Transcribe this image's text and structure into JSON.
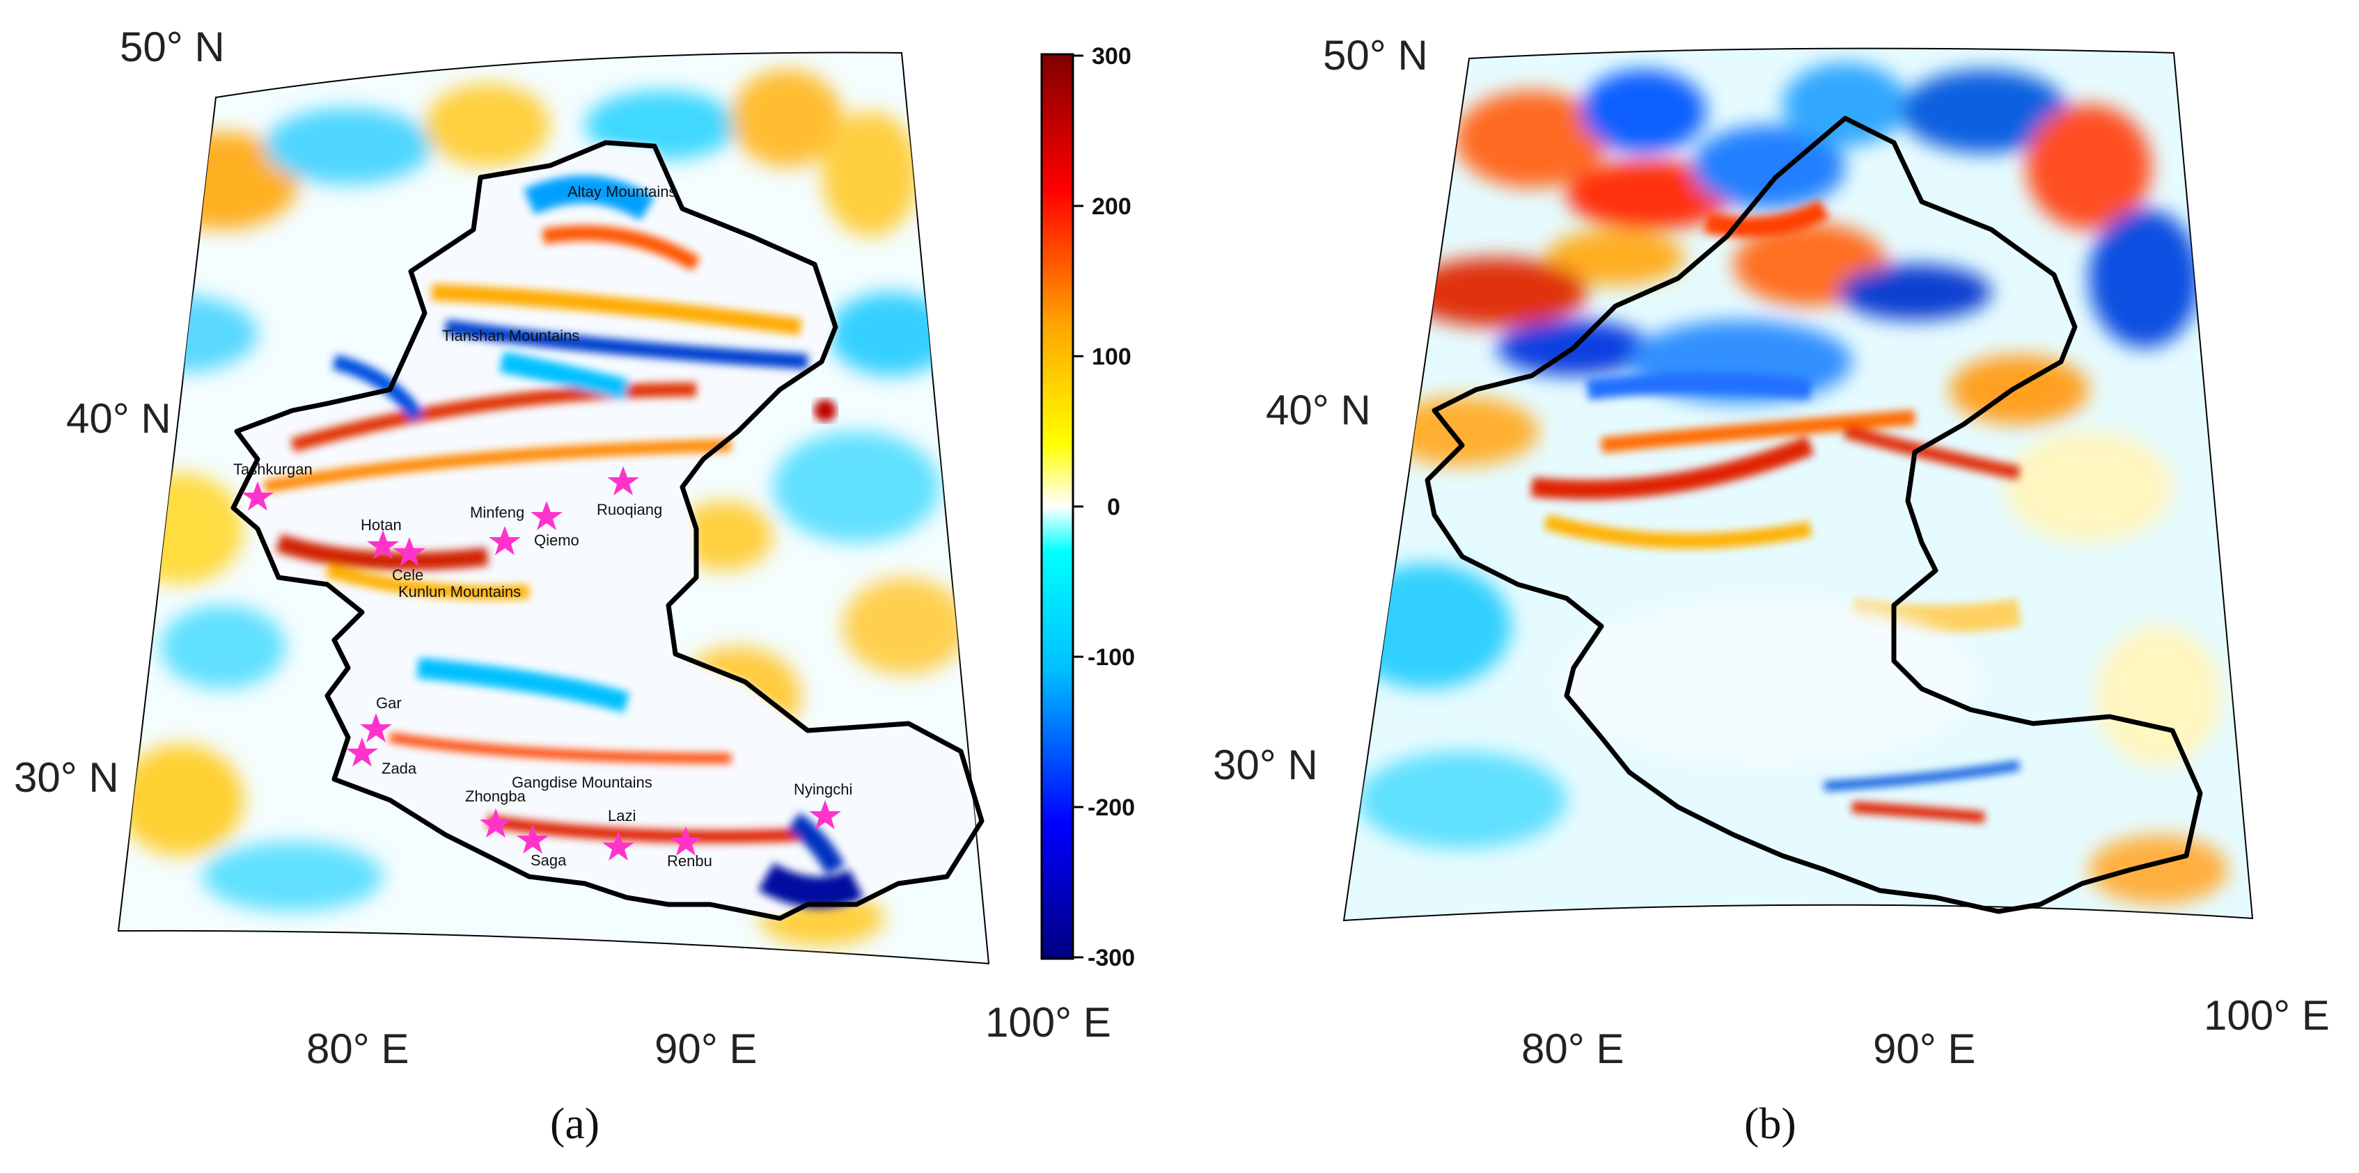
{
  "panels": {
    "a": {
      "label": "(a)"
    },
    "b": {
      "label": "(b)"
    }
  },
  "axes": {
    "lat_labels": [
      "50° N",
      "40° N",
      "30° N"
    ],
    "lon_labels": [
      "80° E",
      "90° E",
      "100° E"
    ]
  },
  "colorbar": {
    "ticks": [
      "300",
      "200",
      "100",
      "0",
      "-100",
      "-200",
      "-300"
    ],
    "range": [
      -300,
      300
    ],
    "colors": [
      "#00007f",
      "#0000ff",
      "#00bfff",
      "#00ffff",
      "#ffffff",
      "#ffff00",
      "#ffa500",
      "#ff0000",
      "#7f0000"
    ]
  },
  "places": {
    "altay": "Altay Mountains",
    "tianshan": "Tianshan Mountains",
    "tashkurgan": "Tashkurgan",
    "hotan": "Hotan",
    "cele": "Cele",
    "kunlun": "Kunlun Mountains",
    "minfeng": "Minfeng",
    "qiemo": "Qiemo",
    "ruoqiang": "Ruoqiang",
    "gar": "Gar",
    "zada": "Zada",
    "gangdise": "Gangdise Mountains",
    "zhongba": "Zhongba",
    "saga": "Saga",
    "lazi": "Lazi",
    "renbu": "Renbu",
    "nyingchi": "Nyingchi"
  },
  "colors": {
    "marker": "#ff33cc",
    "boundary": "#000000",
    "ocean_bg": "#e8fbff"
  }
}
